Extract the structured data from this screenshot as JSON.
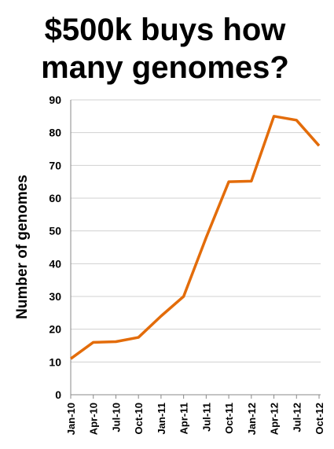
{
  "chart_data": {
    "type": "line",
    "title": "$500k buys how many genomes?",
    "y_label": "Number of genomes",
    "categories": [
      "Jan-10",
      "Apr-10",
      "Jul-10",
      "Oct-10",
      "Jan-11",
      "Apr-11",
      "Jul-11",
      "Oct-11",
      "Jan-12",
      "Apr-12",
      "Jul-12",
      "Oct-12"
    ],
    "values": [
      11,
      16,
      16.2,
      17.5,
      24,
      30,
      48,
      65,
      65.2,
      85,
      83.8,
      76
    ],
    "color": "#e36c0a",
    "ylim": [
      0,
      90
    ],
    "yticks": [
      0,
      10,
      20,
      30,
      40,
      50,
      60,
      70,
      80,
      90
    ],
    "grid": true
  }
}
